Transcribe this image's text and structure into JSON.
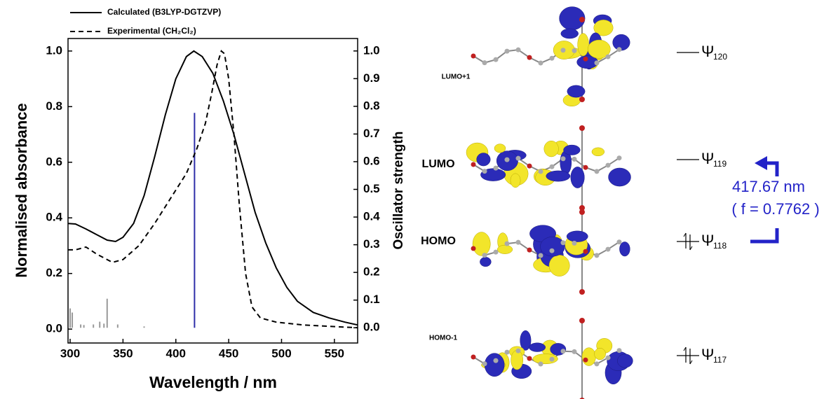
{
  "chart_data": {
    "type": "line",
    "x_label": "Wavelength / nm",
    "y_label": "Normalised absorbance",
    "y2_label": "Oscillator strength",
    "xlim": [
      298,
      572
    ],
    "xticks": [
      300,
      350,
      400,
      450,
      500,
      550
    ],
    "ylim": [
      -0.05,
      1.045
    ],
    "yticks": [
      {
        "value": 0,
        "label": "0.0"
      },
      {
        "value": 0.2,
        "label": "0.2"
      },
      {
        "value": 0.4,
        "label": "0.4"
      },
      {
        "value": 0.6,
        "label": "0.6"
      },
      {
        "value": 0.8,
        "label": "0.8"
      },
      {
        "value": 1,
        "label": "1.0"
      }
    ],
    "y2lim": [
      -0.055,
      1.045
    ],
    "y2ticks": [
      {
        "value": 0,
        "label": "0.0"
      },
      {
        "value": 0.1,
        "label": "0.1"
      },
      {
        "value": 0.2,
        "label": "0.2"
      },
      {
        "value": 0.3,
        "label": "0.3"
      },
      {
        "value": 0.4,
        "label": "0.4"
      },
      {
        "value": 0.5,
        "label": "0.5"
      },
      {
        "value": 0.6,
        "label": "0.6"
      },
      {
        "value": 0.7,
        "label": "0.7"
      },
      {
        "value": 0.8,
        "label": "0.8"
      },
      {
        "value": 0.9,
        "label": "0.9"
      },
      {
        "value": 1,
        "label": "1.0"
      }
    ],
    "legend": "top-left",
    "series": [
      {
        "name": "Calculated (B3LYP-DGTZVP)",
        "color": "#000000",
        "style": "solid",
        "x": [
          298,
          305,
          315,
          325,
          335,
          343,
          350,
          360,
          370,
          380,
          390,
          400,
          410,
          417,
          425,
          435,
          445,
          455,
          465,
          475,
          485,
          495,
          505,
          515,
          530,
          545,
          560,
          572
        ],
        "values": [
          0.38,
          0.378,
          0.36,
          0.34,
          0.32,
          0.315,
          0.33,
          0.38,
          0.48,
          0.62,
          0.77,
          0.9,
          0.98,
          1.0,
          0.98,
          0.92,
          0.82,
          0.7,
          0.56,
          0.42,
          0.31,
          0.22,
          0.15,
          0.1,
          0.06,
          0.04,
          0.025,
          0.015
        ]
      },
      {
        "name": "Experimental (CH₂Cl₂)",
        "color": "#000000",
        "style": "dashed",
        "x": [
          298,
          305,
          315,
          325,
          340,
          350,
          365,
          380,
          395,
          410,
          420,
          428,
          434,
          439,
          443,
          446,
          450,
          455,
          460,
          466,
          472,
          480,
          495,
          520,
          545,
          572
        ],
        "values": [
          0.285,
          0.285,
          0.295,
          0.27,
          0.24,
          0.25,
          0.3,
          0.38,
          0.47,
          0.56,
          0.65,
          0.74,
          0.85,
          0.95,
          1.0,
          0.99,
          0.9,
          0.7,
          0.45,
          0.2,
          0.08,
          0.04,
          0.025,
          0.015,
          0.01,
          0.005
        ]
      }
    ],
    "sticks": {
      "axis": "y2",
      "x": [
        300,
        302,
        310,
        313,
        322,
        328,
        332,
        335,
        345,
        370,
        417.67
      ],
      "values": [
        0.07,
        0.055,
        0.012,
        0.01,
        0.012,
        0.022,
        0.015,
        0.105,
        0.012,
        0.005,
        0.7762
      ],
      "colors": [
        "#999999",
        "#999999",
        "#999999",
        "#999999",
        "#999999",
        "#999999",
        "#999999",
        "#999999",
        "#999999",
        "#999999",
        "#2e2ea8"
      ]
    }
  },
  "diagram": {
    "orbitals": [
      {
        "label": "LUMO+1",
        "psi": "Ψ",
        "sub": "120"
      },
      {
        "label": "LUMO",
        "psi": "Ψ",
        "sub": "119"
      },
      {
        "label": "HOMO",
        "psi": "Ψ",
        "sub": "118"
      },
      {
        "label": "HOMO-1",
        "psi": "Ψ",
        "sub": "117"
      }
    ],
    "transition": {
      "wavelength": "417.67 nm",
      "oscillator": "( f = 0.7762 )"
    }
  }
}
